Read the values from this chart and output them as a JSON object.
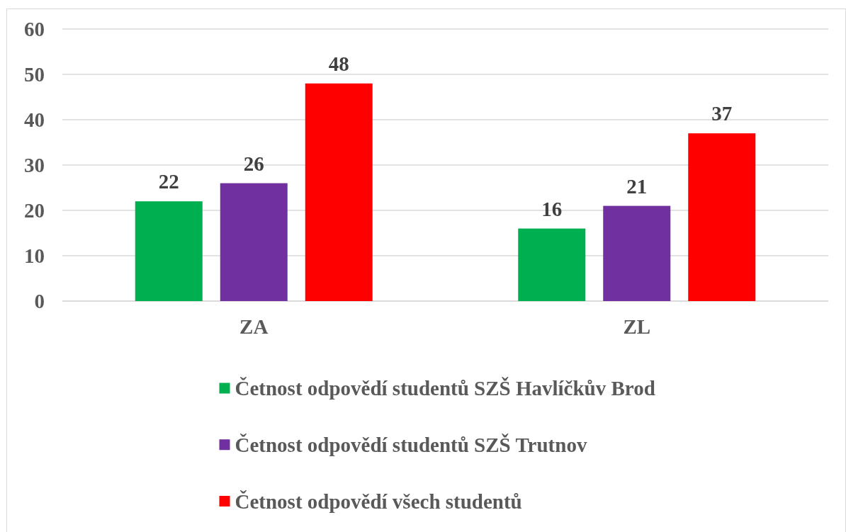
{
  "chart_data": {
    "type": "bar",
    "categories": [
      "ZA",
      "ZL"
    ],
    "series": [
      {
        "name": "Četnost odpovědí studentů SZŠ Havlíčkův Brod",
        "color": "#00b050",
        "values": [
          22,
          16
        ]
      },
      {
        "name": "Četnost odpovědí studentů SZŠ Trutnov",
        "color": "#7030a0",
        "values": [
          26,
          21
        ]
      },
      {
        "name": "Četnost odpovědí všech studentů",
        "color": "#ff0000",
        "values": [
          48,
          37
        ]
      }
    ],
    "ylim": [
      0,
      60
    ],
    "yticks": [
      0,
      10,
      20,
      30,
      40,
      50,
      60
    ],
    "grid": "y",
    "legend": "bottom",
    "data_labels": true
  }
}
